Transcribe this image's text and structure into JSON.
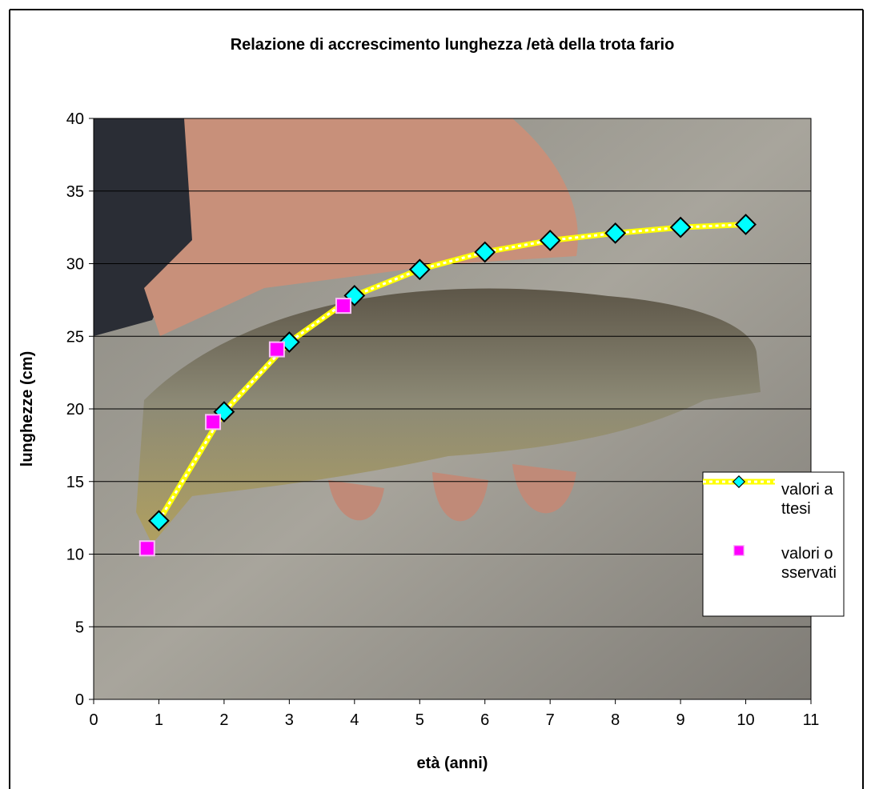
{
  "chart_data": {
    "type": "line",
    "title": "Relazione di accrescimento lunghezza /età della trota fario",
    "x_label": "età (anni)",
    "y_label": "lunghezze (cm)",
    "xlim": [
      0,
      11
    ],
    "xticks": [
      0,
      1,
      2,
      3,
      4,
      5,
      6,
      7,
      8,
      9,
      10,
      11
    ],
    "ylim": [
      0,
      40
    ],
    "yticks": [
      0,
      5,
      10,
      15,
      20,
      25,
      30,
      35,
      40
    ],
    "grid": true,
    "legend": "right",
    "series": [
      {
        "name": "valori attesi",
        "color": "#00ffff",
        "line": true,
        "marker": "diamond",
        "x": [
          1,
          2,
          3,
          4,
          5,
          6,
          7,
          8,
          9,
          10
        ],
        "values": [
          12.3,
          19.8,
          24.6,
          27.8,
          29.6,
          30.8,
          31.6,
          32.1,
          32.5,
          32.7
        ]
      },
      {
        "name": "valori osservati",
        "color": "#ff00ff",
        "line": false,
        "marker": "square",
        "x": [
          0.82,
          1.83,
          2.81,
          3.83
        ],
        "values": [
          10.4,
          19.1,
          24.1,
          27.1
        ]
      }
    ]
  }
}
